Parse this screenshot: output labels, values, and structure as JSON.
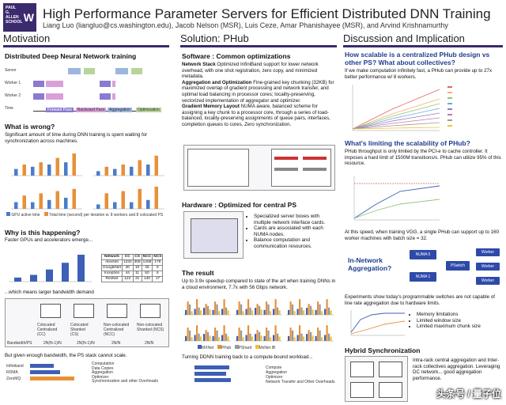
{
  "header": {
    "logo_text": "PAUL G. ALLEN SCHOOL",
    "logo_mark": "W",
    "title": "High Performance Parameter Servers for Efficient Distributed DNN Training",
    "authors": "Liang Luo (liangluo@cs.washington.edu), Jacob Nelson (MSR), Luis Ceze, Amar Phanishayee (MSR), and Arvind Krishnamurthy"
  },
  "col1": {
    "title": "Motivation",
    "h1": "Distributed Deep Neural Network training",
    "rows": [
      "Server",
      "Worker 1",
      "Worker 2",
      "Time"
    ],
    "timeline_legend": [
      "Forward Pass",
      "Backward Pass",
      "Aggregation",
      "Optimization"
    ],
    "h2": "What is wrong?",
    "p2": "Significant amount of time during DNN training is spent waiting for synchronization across machines.",
    "chart_legend": [
      "GPU active time",
      "Total time (second) per iteration w. 8 workers and 8 colocated PS"
    ],
    "h3": "Why is this happening?",
    "p3": "Faster GPUs and accelerators emerge...",
    "p4": "...which means larger bandwidth demand",
    "p5": "But given enough bandwidth, the PS stack cannot scale.",
    "bw_labels": [
      "Colocated Centralized (CC)",
      "Colocated Sharded (CS)",
      "Non-colocated Centralized (NCC)",
      "Non-colocated Sharded (NCS)"
    ],
    "bw_row": [
      "Bandwidth/PS",
      "2N(N-1)/N",
      "2N(N-1)/N",
      "2N/N",
      "2N/N"
    ],
    "ps_legend": [
      "Computation",
      "Data Copies",
      "Aggregation",
      "Optimizer",
      "Synchronization and other Overheads"
    ],
    "ps_rows": [
      "Infiniband",
      "RDMA",
      "ZeroMQ"
    ]
  },
  "table": {
    "headers": [
      "Network",
      "CC",
      "CS",
      "NCC",
      "NCS"
    ],
    "rows": [
      [
        "AlexNet",
        "1232",
        "308",
        "1408",
        "176"
      ],
      [
        "GoogleNet",
        "40",
        "10",
        "45",
        "6"
      ],
      [
        "Inception",
        "44",
        "11",
        "50",
        "6"
      ],
      [
        "ResNet",
        "122",
        "31",
        "140",
        "17"
      ]
    ]
  },
  "col2": {
    "title": "Solution: PHub",
    "h1": "Software : Common optimizations",
    "p1a_b": "Network Stack",
    "p1a": " Optimized InfiniBand support for lower network overhead, with one shot registration, zero copy, and minimized metadata.",
    "p1b_b": "Aggregation and Optimization",
    "p1b": " Fine-grained key chunking (32KB) for maximized overlap of gradient processing and network transfer, and optimal load balancing in processor cores; locality-preserving, vectorized implementation of aggregator and optimizer.",
    "p1c_b": "Gradient Memory Layout",
    "p1c": " NUMA aware, balanced scheme for assigning a key chunk to a processor core, through a series of load-balanced, locality-preserving assignments of queue pairs, interfaces, completion queues to cores. Zero synchronization.",
    "h2": "Hardware : Optimized for central PS",
    "bullets": [
      "Specialized server boxes with multiple network interface cards.",
      "Cards are associated with each NUMA nodes.",
      "Balance computation and communication resources."
    ],
    "h3": "The result",
    "p3": "Up to 3.9x speedup compared to state of the art when training DNNs in a cloud environment, 7.7x with 56 Gbps network.",
    "p4": "Turning DDNN training back to a compute-bound workload...",
    "res_legend": [
      "MXNet",
      "PHub",
      "PShard",
      "MxNet IB"
    ],
    "cb_legend": [
      "Compute",
      "Aggregation",
      "Optimizer",
      "Network Transfer and Other Overheads"
    ]
  },
  "col3": {
    "title": "Discussion and Implication",
    "h1": "How scalable is a centralized PHub design vs other PS? What about collectives?",
    "p1": "If we make computation infinitely fast, a PHub can provide up to 27x better performance w/ 8 workers.",
    "h2": "What's limiting the scalability of PHub?",
    "p2": "PHub throughput is only limited by the PCI-e to cache controller. It imposes a hard limit of 1500M transitions/s. PHub can utilize 95% of this resource.",
    "p3": "At this speed, when training VGG, a single PHub can support up to 160 worker machines with batch size = 32.",
    "h3": "In-Network Aggregation?",
    "p4": "Experiments show today's programmable switches are not capable of line rate aggregation due to hardware limits.",
    "bullets": [
      "Memory limitations",
      "Limited window size",
      "Limited maximum chunk size"
    ],
    "h4": "Hybrid Synchronization",
    "p5": "Intra-rack central aggregation and Inter-rack collectives aggregation. Leveraging DC network... good aggregation performance.",
    "net_labels": [
      "NUMA 0",
      "NUMA 1",
      "Worker",
      "Worker",
      "PSwitch",
      "Worker"
    ]
  },
  "watermark": "头条号 / 量子位"
}
